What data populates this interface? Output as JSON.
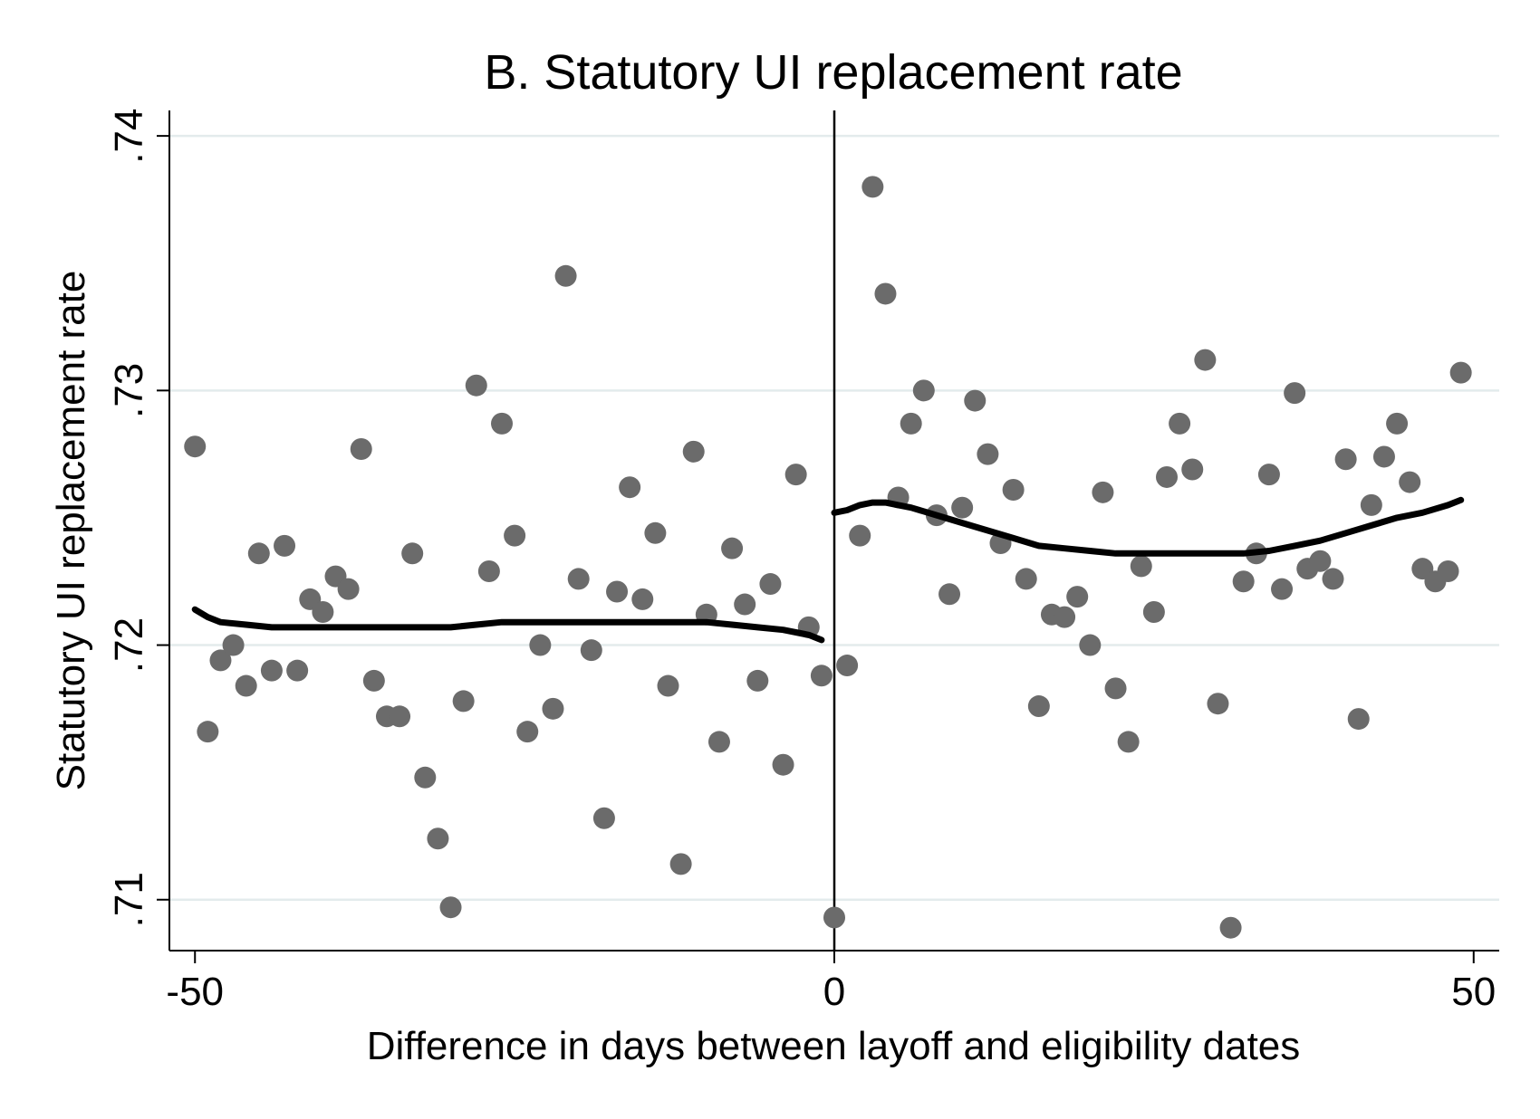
{
  "chart_data": {
    "type": "scatter",
    "title": "B. Statutory UI replacement rate",
    "xlabel": "Difference in days between layoff and eligibility dates",
    "ylabel": "Statutory UI replacement rate",
    "xlim": [
      -52,
      52
    ],
    "ylim": [
      0.708,
      0.741
    ],
    "x_ticks": [
      {
        "value": -50,
        "label": "-50"
      },
      {
        "value": 0,
        "label": "0"
      },
      {
        "value": 50,
        "label": "50"
      }
    ],
    "y_ticks": [
      {
        "value": 0.71,
        "label": ".71"
      },
      {
        "value": 0.72,
        "label": ".72"
      },
      {
        "value": 0.73,
        "label": ".73"
      },
      {
        "value": 0.74,
        "label": ".74"
      }
    ],
    "grid": "horizontal",
    "cutoff_x": 0,
    "points": [
      [
        -50,
        0.7278
      ],
      [
        -49,
        0.7166
      ],
      [
        -48,
        0.7194
      ],
      [
        -47,
        0.72
      ],
      [
        -46,
        0.7184
      ],
      [
        -45,
        0.7236
      ],
      [
        -44,
        0.719
      ],
      [
        -43,
        0.7239
      ],
      [
        -42,
        0.719
      ],
      [
        -41,
        0.7218
      ],
      [
        -40,
        0.7213
      ],
      [
        -39,
        0.7227
      ],
      [
        -38,
        0.7222
      ],
      [
        -37,
        0.7277
      ],
      [
        -36,
        0.7186
      ],
      [
        -35,
        0.7172
      ],
      [
        -34,
        0.7172
      ],
      [
        -33,
        0.7236
      ],
      [
        -32,
        0.7148
      ],
      [
        -31,
        0.7124
      ],
      [
        -30,
        0.7097
      ],
      [
        -29,
        0.7178
      ],
      [
        -28,
        0.7302
      ],
      [
        -27,
        0.7229
      ],
      [
        -26,
        0.7287
      ],
      [
        -25,
        0.7243
      ],
      [
        -24,
        0.7166
      ],
      [
        -23,
        0.72
      ],
      [
        -22,
        0.7175
      ],
      [
        -21,
        0.7345
      ],
      [
        -20,
        0.7226
      ],
      [
        -19,
        0.7198
      ],
      [
        -18,
        0.7132
      ],
      [
        -17,
        0.7221
      ],
      [
        -16,
        0.7262
      ],
      [
        -15,
        0.7218
      ],
      [
        -14,
        0.7244
      ],
      [
        -13,
        0.7184
      ],
      [
        -12,
        0.7114
      ],
      [
        -11,
        0.7276
      ],
      [
        -10,
        0.7212
      ],
      [
        -9,
        0.7162
      ],
      [
        -8,
        0.7238
      ],
      [
        -7,
        0.7216
      ],
      [
        -6,
        0.7186
      ],
      [
        -5,
        0.7224
      ],
      [
        -4,
        0.7153
      ],
      [
        -3,
        0.7267
      ],
      [
        -2,
        0.7207
      ],
      [
        -1,
        0.7188
      ],
      [
        0,
        0.7093
      ],
      [
        1,
        0.7192
      ],
      [
        2,
        0.7243
      ],
      [
        3,
        0.738
      ],
      [
        4,
        0.7338
      ],
      [
        5,
        0.7258
      ],
      [
        6,
        0.7287
      ],
      [
        7,
        0.73
      ],
      [
        8,
        0.7251
      ],
      [
        9,
        0.722
      ],
      [
        10,
        0.7254
      ],
      [
        11,
        0.7296
      ],
      [
        12,
        0.7275
      ],
      [
        13,
        0.724
      ],
      [
        14,
        0.7261
      ],
      [
        15,
        0.7226
      ],
      [
        16,
        0.7176
      ],
      [
        17,
        0.7212
      ],
      [
        18,
        0.7211
      ],
      [
        19,
        0.7219
      ],
      [
        20,
        0.72
      ],
      [
        21,
        0.726
      ],
      [
        22,
        0.7183
      ],
      [
        23,
        0.7162
      ],
      [
        24,
        0.7231
      ],
      [
        25,
        0.7213
      ],
      [
        26,
        0.7266
      ],
      [
        27,
        0.7287
      ],
      [
        28,
        0.7269
      ],
      [
        29,
        0.7312
      ],
      [
        30,
        0.7177
      ],
      [
        31,
        0.7089
      ],
      [
        32,
        0.7225
      ],
      [
        33,
        0.7236
      ],
      [
        34,
        0.7267
      ],
      [
        35,
        0.7222
      ],
      [
        36,
        0.7299
      ],
      [
        37,
        0.723
      ],
      [
        38,
        0.7233
      ],
      [
        39,
        0.7226
      ],
      [
        40,
        0.7273
      ],
      [
        41,
        0.7171
      ],
      [
        42,
        0.7255
      ],
      [
        43,
        0.7274
      ],
      [
        44,
        0.7287
      ],
      [
        45,
        0.7264
      ],
      [
        46,
        0.723
      ],
      [
        47,
        0.7225
      ],
      [
        48,
        0.7229
      ],
      [
        49,
        0.7307
      ]
    ],
    "fit_left": [
      [
        -50,
        0.7214
      ],
      [
        -49,
        0.7211
      ],
      [
        -48,
        0.7209
      ],
      [
        -46,
        0.7208
      ],
      [
        -44,
        0.7207
      ],
      [
        -42,
        0.7207
      ],
      [
        -40,
        0.7207
      ],
      [
        -38,
        0.7207
      ],
      [
        -36,
        0.7207
      ],
      [
        -34,
        0.7207
      ],
      [
        -32,
        0.7207
      ],
      [
        -30,
        0.7207
      ],
      [
        -28,
        0.7208
      ],
      [
        -26,
        0.7209
      ],
      [
        -24,
        0.7209
      ],
      [
        -22,
        0.7209
      ],
      [
        -20,
        0.7209
      ],
      [
        -18,
        0.7209
      ],
      [
        -16,
        0.7209
      ],
      [
        -14,
        0.7209
      ],
      [
        -12,
        0.7209
      ],
      [
        -10,
        0.7209
      ],
      [
        -8,
        0.7208
      ],
      [
        -6,
        0.7207
      ],
      [
        -4,
        0.7206
      ],
      [
        -2,
        0.7204
      ],
      [
        -1,
        0.7202
      ]
    ],
    "fit_right": [
      [
        0,
        0.7252
      ],
      [
        1,
        0.7253
      ],
      [
        2,
        0.7255
      ],
      [
        3,
        0.7256
      ],
      [
        4,
        0.7256
      ],
      [
        5,
        0.7255
      ],
      [
        6,
        0.7254
      ],
      [
        8,
        0.7251
      ],
      [
        10,
        0.7248
      ],
      [
        12,
        0.7245
      ],
      [
        14,
        0.7242
      ],
      [
        16,
        0.7239
      ],
      [
        18,
        0.7238
      ],
      [
        20,
        0.7237
      ],
      [
        22,
        0.7236
      ],
      [
        24,
        0.7236
      ],
      [
        26,
        0.7236
      ],
      [
        28,
        0.7236
      ],
      [
        30,
        0.7236
      ],
      [
        32,
        0.7236
      ],
      [
        34,
        0.7237
      ],
      [
        36,
        0.7239
      ],
      [
        38,
        0.7241
      ],
      [
        40,
        0.7244
      ],
      [
        42,
        0.7247
      ],
      [
        44,
        0.725
      ],
      [
        46,
        0.7252
      ],
      [
        48,
        0.7255
      ],
      [
        49,
        0.7257
      ]
    ]
  }
}
